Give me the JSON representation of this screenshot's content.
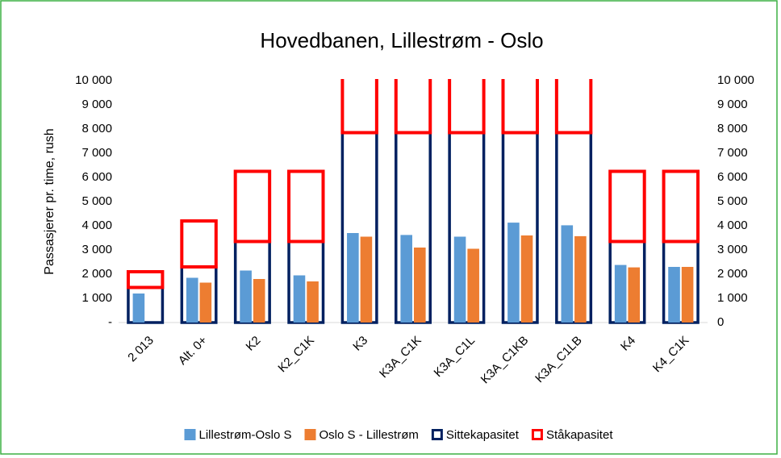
{
  "chart_data": {
    "type": "bar",
    "title": "Hovedbanen, Lillestrøm - Oslo",
    "y_label": "Passasjerer pr. time, rush",
    "categories": [
      "2 013",
      "Alt. 0+",
      "K2",
      "K2_C1K",
      "K3",
      "K3A_C1K",
      "K3A_C1L",
      "K3A_C1KB",
      "K3A_C1LB",
      "K4",
      "K4_C1K"
    ],
    "series": [
      {
        "name": "Lillestrøm-Oslo S",
        "color": "#5b9bd5",
        "values": [
          1200,
          1850,
          2150,
          1950,
          3700,
          3620,
          3550,
          4130,
          4020,
          2380,
          2300
        ]
      },
      {
        "name": "Oslo S - Lillestrøm",
        "color": "#ed7d31",
        "values": [
          null,
          1650,
          1800,
          1700,
          3550,
          3100,
          3050,
          3600,
          3570,
          2280,
          2300
        ]
      },
      {
        "name": "Sittekapasitet",
        "color": "#002060",
        "axis": "y2",
        "values": [
          1450,
          2300,
          3350,
          3350,
          7850,
          7850,
          7850,
          7850,
          7850,
          3350,
          3350
        ]
      },
      {
        "name": "Ståkapasitet",
        "color": "#ff0000",
        "axis": "y2",
        "values": [
          650,
          1900,
          2900,
          2900,
          4400,
          4400,
          4400,
          4400,
          4400,
          2900,
          2900
        ]
      }
    ],
    "ylim": [
      0,
      10000
    ],
    "yticks": [
      {
        "value": 0,
        "label": "-"
      },
      {
        "value": 1000,
        "label": "1 000"
      },
      {
        "value": 2000,
        "label": "2 000"
      },
      {
        "value": 3000,
        "label": "3 000"
      },
      {
        "value": 4000,
        "label": "4 000"
      },
      {
        "value": 5000,
        "label": "5 000"
      },
      {
        "value": 6000,
        "label": "6 000"
      },
      {
        "value": 7000,
        "label": "7 000"
      },
      {
        "value": 8000,
        "label": "8 000"
      },
      {
        "value": 9000,
        "label": "9 000"
      },
      {
        "value": 10000,
        "label": "10 000"
      }
    ],
    "y2lim": [
      0,
      10000
    ],
    "y2ticks": [
      0,
      {
        "value": 1000,
        "label": "1 000"
      },
      {
        "value": 2000,
        "label": "2 000"
      },
      {
        "value": 3000,
        "label": "3 000"
      },
      {
        "value": 4000,
        "label": "4 000"
      },
      {
        "value": 5000,
        "label": "5 000"
      },
      {
        "value": 6000,
        "label": "6 000"
      },
      {
        "value": 7000,
        "label": "7 000"
      },
      {
        "value": 8000,
        "label": "8 000"
      },
      {
        "value": 9000,
        "label": "9 000"
      },
      {
        "value": 10000,
        "label": "10 000"
      }
    ],
    "legend": "bottom"
  }
}
